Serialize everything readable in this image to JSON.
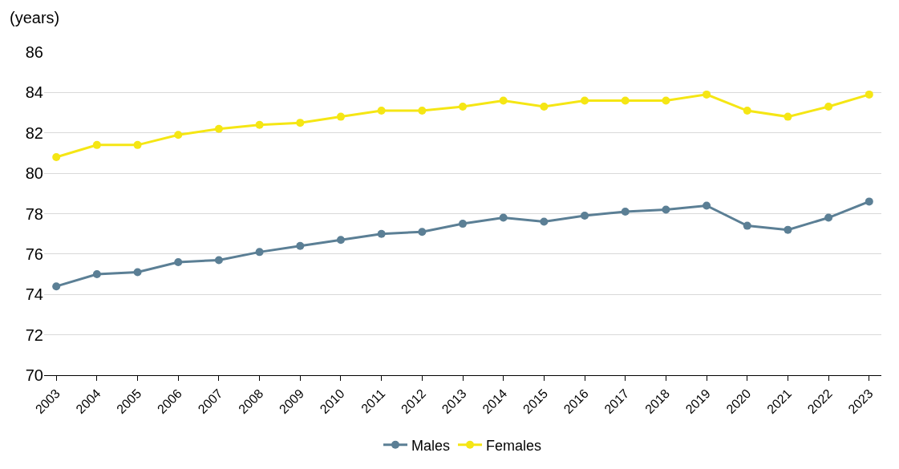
{
  "chart_data": {
    "type": "line",
    "ylabel": "(years)",
    "categories": [
      "2003",
      "2004",
      "2005",
      "2006",
      "2007",
      "2008",
      "2009",
      "2010",
      "2011",
      "2012",
      "2013",
      "2014",
      "2015",
      "2016",
      "2017",
      "2018",
      "2019",
      "2020",
      "2021",
      "2022",
      "2023"
    ],
    "series": [
      {
        "name": "Males",
        "color": "#5b7f95",
        "values": [
          74.4,
          75.0,
          75.1,
          75.6,
          75.7,
          76.1,
          76.4,
          76.7,
          77.0,
          77.1,
          77.5,
          77.8,
          77.6,
          77.9,
          78.1,
          78.2,
          78.4,
          77.4,
          77.2,
          77.8,
          78.6
        ]
      },
      {
        "name": "Females",
        "color": "#f5e614",
        "values": [
          80.8,
          81.4,
          81.4,
          81.9,
          82.2,
          82.4,
          82.5,
          82.8,
          83.1,
          83.1,
          83.3,
          83.6,
          83.3,
          83.6,
          83.6,
          83.6,
          83.9,
          83.1,
          82.8,
          83.3,
          83.9
        ]
      }
    ],
    "ylim": [
      70,
      86
    ],
    "yticks": [
      70,
      72,
      74,
      76,
      78,
      80,
      82,
      84,
      86
    ],
    "grid": "y",
    "legend": "bottom",
    "marker": "circle",
    "line_style": "solid"
  }
}
